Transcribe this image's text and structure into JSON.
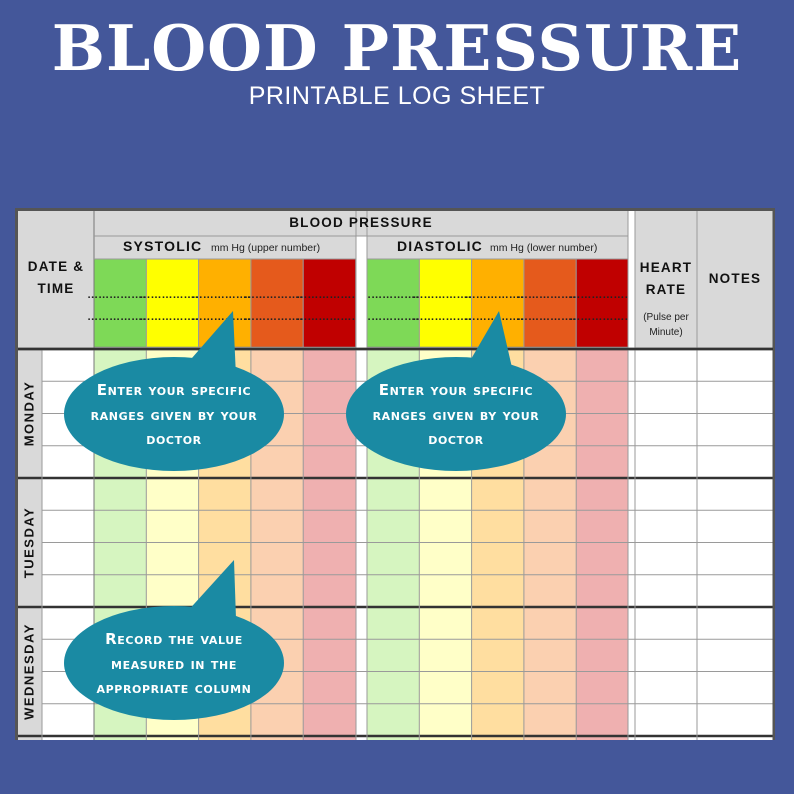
{
  "header": {
    "title": "BLOOD PRESSURE",
    "subtitle": "PRINTABLE LOG SHEET"
  },
  "table": {
    "date_time_label": [
      "DATE &",
      "TIME"
    ],
    "blood_pressure_label": "BLOOD PRESSURE",
    "systolic": {
      "label": "SYSTOLIC",
      "unit": "mm Hg (upper number)"
    },
    "diastolic": {
      "label": "DIASTOLIC",
      "unit": "mm Hg (lower number)"
    },
    "range_placeholder": "………………",
    "heart_rate_label": [
      "HEART",
      "RATE"
    ],
    "heart_rate_unit": [
      "(Pulse per",
      "Minute)"
    ],
    "notes_label": "NOTES",
    "days": [
      "MONDAY",
      "TUESDAY",
      "WEDNESDAY"
    ],
    "colors": {
      "header_bg": "#d9d9d9",
      "range_headers": [
        "#7ed957",
        "#ffff00",
        "#ffb000",
        "#e55a1c",
        "#c00000"
      ],
      "range_cells": [
        "#d6f5c0",
        "#ffffc8",
        "#ffdea0",
        "#fbd0b0",
        "#efb0b0"
      ],
      "callout": "#1a8aa3"
    }
  },
  "callouts": [
    [
      "Enter your specific",
      "ranges given by your",
      "doctor"
    ],
    [
      "Enter your specific",
      "ranges given by your",
      "doctor"
    ],
    [
      "Record the value",
      "measured in the",
      "appropriate column"
    ]
  ]
}
